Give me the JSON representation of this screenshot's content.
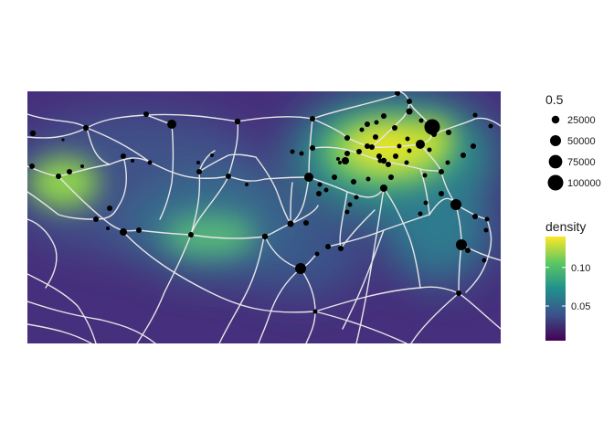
{
  "map": {
    "colors": {
      "background": "#ffffff",
      "density_low": "#440154",
      "density_mid": "#21908c",
      "density_high": "#fde725",
      "roads": "#e6e6e6",
      "points": "#000000"
    }
  },
  "legend_size": {
    "title": "0.5",
    "entries": [
      {
        "label": "25000",
        "value": 25000
      },
      {
        "label": "50000",
        "value": 50000
      },
      {
        "label": "75000",
        "value": 75000
      },
      {
        "label": "100000",
        "value": 100000
      }
    ]
  },
  "legend_density": {
    "title": "density",
    "ticks": [
      {
        "label": "0.10",
        "value": 0.1
      },
      {
        "label": "0.05",
        "value": 0.05
      }
    ],
    "range": [
      0.005,
      0.14
    ]
  }
}
